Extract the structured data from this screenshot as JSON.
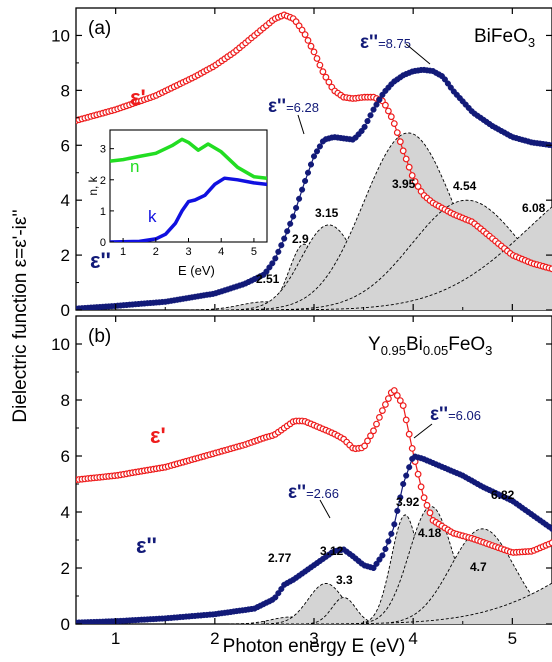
{
  "figure": {
    "ylabel": "Dielectric function ε=ε'-iε''",
    "xlabel": "Photon energy E (eV)",
    "xticks": [
      1,
      2,
      3,
      4,
      5
    ],
    "xlim": [
      0.6,
      5.4
    ]
  },
  "colors": {
    "eps1": "#ee1c1c",
    "eps2": "#121a78",
    "n": "#22dd22",
    "k": "#1010e0",
    "fill": "#d4d4d4"
  },
  "chart_data": [
    {
      "type": "scatter",
      "panel": "(a)",
      "material": "BiFeO3",
      "ylim": [
        0,
        11
      ],
      "yticks": [
        0,
        2,
        4,
        6,
        8,
        10
      ],
      "series": [
        {
          "name": "ε'",
          "x": [
            0.6,
            1.0,
            1.4,
            1.8,
            2.0,
            2.2,
            2.4,
            2.6,
            2.7,
            2.8,
            2.9,
            3.0,
            3.1,
            3.2,
            3.3,
            3.4,
            3.5,
            3.6,
            3.7,
            3.8,
            3.9,
            4.0,
            4.1,
            4.2,
            4.4,
            4.6,
            4.8,
            5.0,
            5.2,
            5.4
          ],
          "values": [
            6.9,
            7.3,
            7.8,
            8.5,
            8.9,
            9.4,
            10.0,
            10.6,
            10.75,
            10.6,
            10.1,
            9.4,
            8.6,
            8.0,
            7.75,
            7.7,
            7.75,
            7.75,
            7.6,
            6.9,
            5.8,
            4.8,
            4.2,
            3.9,
            3.5,
            3.2,
            2.6,
            2.0,
            1.7,
            1.5
          ]
        },
        {
          "name": "ε''",
          "x": [
            0.6,
            1.0,
            1.5,
            2.0,
            2.3,
            2.5,
            2.6,
            2.7,
            2.8,
            2.9,
            3.0,
            3.1,
            3.2,
            3.3,
            3.4,
            3.5,
            3.6,
            3.7,
            3.8,
            3.9,
            4.0,
            4.1,
            4.2,
            4.3,
            4.4,
            4.6,
            4.8,
            5.0,
            5.2,
            5.4
          ],
          "values": [
            0.05,
            0.15,
            0.3,
            0.6,
            0.95,
            1.3,
            1.8,
            2.6,
            3.5,
            4.6,
            5.6,
            6.2,
            6.3,
            6.25,
            6.2,
            6.6,
            7.3,
            7.9,
            8.3,
            8.55,
            8.7,
            8.75,
            8.7,
            8.5,
            8.0,
            7.2,
            6.7,
            6.3,
            6.1,
            6.0
          ]
        }
      ],
      "peaks": [
        {
          "label": "2.51",
          "center": 2.51,
          "amp": 0.3,
          "width": 0.25
        },
        {
          "label": "2.9",
          "center": 2.9,
          "amp": 2.4,
          "width": 0.15
        },
        {
          "label": "3.15",
          "center": 3.15,
          "amp": 3.1,
          "width": 0.28
        },
        {
          "label": "3.95",
          "center": 3.95,
          "amp": 6.45,
          "width": 0.45
        },
        {
          "label": "4.54",
          "center": 4.54,
          "amp": 4.0,
          "width": 0.55
        },
        {
          "label": "6.08",
          "center": 6.08,
          "amp": 5.0,
          "width": 0.9
        }
      ],
      "annotations": {
        "eps2_max": "=8.75",
        "eps2_mid": "=6.28"
      },
      "inset": {
        "xlabel": "E (eV)",
        "ylabel": "n, k",
        "xlim": [
          0.6,
          5.4
        ],
        "ylim": [
          0,
          3.6
        ],
        "xticks": [
          1,
          2,
          3,
          4,
          5
        ],
        "yticks": [
          0,
          1,
          2,
          3
        ],
        "series": [
          {
            "name": "n",
            "x": [
              0.6,
              1.0,
              1.5,
              2.0,
              2.5,
              2.8,
              3.0,
              3.3,
              3.6,
              4.0,
              4.5,
              5.0,
              5.4
            ],
            "values": [
              2.6,
              2.65,
              2.75,
              2.85,
              3.1,
              3.3,
              3.2,
              2.95,
              3.15,
              2.9,
              2.4,
              2.1,
              2.05
            ]
          },
          {
            "name": "k",
            "x": [
              0.6,
              1.5,
              2.0,
              2.3,
              2.6,
              2.8,
              3.0,
              3.2,
              3.5,
              3.8,
              4.1,
              4.5,
              5.0,
              5.4
            ],
            "values": [
              0.0,
              0.02,
              0.1,
              0.25,
              0.6,
              1.0,
              1.3,
              1.35,
              1.5,
              1.85,
              2.05,
              2.0,
              1.9,
              1.85
            ]
          }
        ]
      }
    },
    {
      "type": "scatter",
      "panel": "(b)",
      "material": "Y0.95Bi0.05FeO3",
      "ylim": [
        0,
        11
      ],
      "yticks": [
        0,
        2,
        4,
        6,
        8,
        10
      ],
      "series": [
        {
          "name": "ε'",
          "x": [
            0.6,
            1.0,
            1.5,
            2.0,
            2.3,
            2.5,
            2.6,
            2.7,
            2.8,
            2.9,
            3.0,
            3.1,
            3.2,
            3.3,
            3.4,
            3.5,
            3.6,
            3.7,
            3.8,
            3.9,
            4.0,
            4.1,
            4.2,
            4.4,
            4.6,
            4.8,
            5.0,
            5.2,
            5.4
          ],
          "values": [
            5.15,
            5.3,
            5.6,
            6.1,
            6.4,
            6.65,
            6.75,
            7.0,
            7.25,
            7.25,
            7.1,
            6.95,
            6.8,
            6.6,
            6.25,
            6.3,
            6.9,
            7.7,
            8.4,
            7.8,
            6.1,
            4.6,
            3.7,
            3.25,
            3.05,
            2.8,
            2.55,
            2.6,
            2.9
          ]
        },
        {
          "name": "ε''",
          "x": [
            0.6,
            1.0,
            1.5,
            2.0,
            2.4,
            2.6,
            2.7,
            2.8,
            2.9,
            3.0,
            3.1,
            3.2,
            3.3,
            3.4,
            3.5,
            3.6,
            3.7,
            3.8,
            3.9,
            4.0,
            4.1,
            4.3,
            4.5,
            4.7,
            5.0,
            5.2,
            5.4
          ],
          "values": [
            0.05,
            0.1,
            0.2,
            0.35,
            0.55,
            0.9,
            1.4,
            1.6,
            1.85,
            2.1,
            2.35,
            2.6,
            2.66,
            2.4,
            2.1,
            2.0,
            2.5,
            3.4,
            5.0,
            6.0,
            5.9,
            5.6,
            5.3,
            4.9,
            4.4,
            3.9,
            3.4
          ]
        }
      ],
      "peaks": [
        {
          "label": "2.77",
          "center": 2.77,
          "amp": 0.25,
          "width": 0.2
        },
        {
          "label": "3.12",
          "center": 3.12,
          "amp": 1.45,
          "width": 0.18
        },
        {
          "label": "3.3",
          "center": 3.3,
          "amp": 0.95,
          "width": 0.12
        },
        {
          "label": "3.92",
          "center": 3.92,
          "amp": 3.9,
          "width": 0.14
        },
        {
          "label": "4.18",
          "center": 4.18,
          "amp": 4.2,
          "width": 0.22
        },
        {
          "label": "4.7",
          "center": 4.7,
          "amp": 3.4,
          "width": 0.32
        },
        {
          "label": "6.82",
          "center": 6.82,
          "amp": 4.0,
          "width": 1.0
        }
      ],
      "annotations": {
        "eps2_max": "=6.06",
        "eps2_mid": "=2.66"
      }
    }
  ]
}
